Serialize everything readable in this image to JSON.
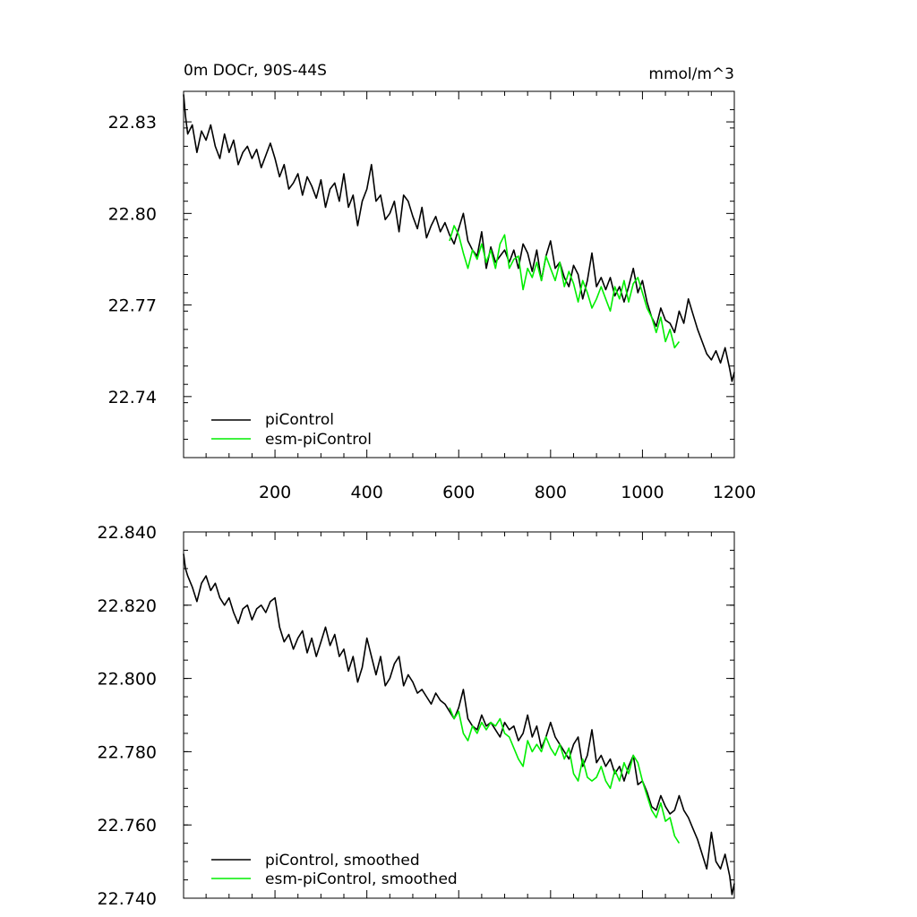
{
  "chart_data": [
    {
      "type": "line",
      "title": "0m DOCr, 90S-44S",
      "units": "mmol/m^3",
      "xlabel": "",
      "ylabel": "",
      "xlim": [
        1,
        1200
      ],
      "ylim": [
        22.72,
        22.84
      ],
      "xticks": [
        200,
        400,
        600,
        800,
        1000,
        1200
      ],
      "xtick_labels": [
        "200",
        "400",
        "600",
        "800",
        "1000",
        "1200"
      ],
      "yticks": [
        22.74,
        22.77,
        22.8,
        22.83
      ],
      "ytick_labels": [
        "22.74",
        "22.77",
        "22.80",
        "22.83"
      ],
      "legend_position": "bottom-left",
      "series": [
        {
          "name": "piControl",
          "color": "#000000",
          "x": [
            1,
            5,
            10,
            20,
            30,
            40,
            50,
            60,
            70,
            80,
            90,
            100,
            110,
            120,
            130,
            140,
            150,
            160,
            170,
            180,
            190,
            200,
            210,
            220,
            230,
            240,
            250,
            260,
            270,
            280,
            290,
            300,
            310,
            320,
            330,
            340,
            350,
            360,
            370,
            380,
            390,
            400,
            410,
            420,
            430,
            440,
            450,
            460,
            470,
            480,
            490,
            500,
            510,
            520,
            530,
            540,
            550,
            560,
            570,
            580,
            590,
            600,
            610,
            620,
            630,
            640,
            650,
            660,
            670,
            680,
            690,
            700,
            710,
            720,
            730,
            740,
            750,
            760,
            770,
            780,
            790,
            800,
            810,
            820,
            830,
            840,
            850,
            860,
            870,
            880,
            890,
            900,
            910,
            920,
            930,
            940,
            950,
            960,
            970,
            980,
            990,
            1000,
            1010,
            1020,
            1030,
            1040,
            1050,
            1060,
            1070,
            1080,
            1090,
            1100,
            1110,
            1120,
            1130,
            1140,
            1150,
            1160,
            1170,
            1180,
            1190,
            1195,
            1200
          ],
          "y": [
            22.839,
            22.832,
            22.826,
            22.829,
            22.82,
            22.827,
            22.824,
            22.829,
            22.822,
            22.818,
            22.826,
            22.82,
            22.824,
            22.816,
            22.82,
            22.822,
            22.818,
            22.821,
            22.815,
            22.819,
            22.823,
            22.818,
            22.812,
            22.816,
            22.808,
            22.81,
            22.813,
            22.806,
            22.812,
            22.809,
            22.805,
            22.811,
            22.802,
            22.808,
            22.81,
            22.804,
            22.813,
            22.802,
            22.806,
            22.796,
            22.804,
            22.808,
            22.816,
            22.804,
            22.806,
            22.798,
            22.8,
            22.804,
            22.794,
            22.806,
            22.804,
            22.799,
            22.795,
            22.802,
            22.792,
            22.796,
            22.799,
            22.794,
            22.797,
            22.793,
            22.79,
            22.795,
            22.8,
            22.791,
            22.788,
            22.786,
            22.794,
            22.782,
            22.789,
            22.784,
            22.786,
            22.788,
            22.784,
            22.788,
            22.782,
            22.79,
            22.787,
            22.781,
            22.788,
            22.778,
            22.786,
            22.791,
            22.782,
            22.784,
            22.779,
            22.776,
            22.783,
            22.78,
            22.772,
            22.778,
            22.787,
            22.776,
            22.779,
            22.775,
            22.779,
            22.773,
            22.776,
            22.771,
            22.776,
            22.782,
            22.774,
            22.778,
            22.771,
            22.766,
            22.763,
            22.769,
            22.765,
            22.764,
            22.761,
            22.768,
            22.764,
            22.772,
            22.767,
            22.762,
            22.758,
            22.754,
            22.752,
            22.755,
            22.751,
            22.756,
            22.749,
            22.745,
            22.748
          ]
        },
        {
          "name": "esm-piControl",
          "color": "#00ee00",
          "x": [
            580,
            590,
            600,
            610,
            620,
            630,
            640,
            650,
            660,
            670,
            680,
            690,
            700,
            710,
            720,
            730,
            740,
            750,
            760,
            770,
            780,
            790,
            800,
            810,
            820,
            830,
            840,
            850,
            860,
            870,
            880,
            890,
            900,
            910,
            920,
            930,
            940,
            950,
            960,
            970,
            980,
            990,
            1000,
            1010,
            1020,
            1030,
            1040,
            1050,
            1060,
            1070,
            1080
          ],
          "y": [
            22.791,
            22.796,
            22.793,
            22.787,
            22.782,
            22.788,
            22.785,
            22.79,
            22.784,
            22.788,
            22.782,
            22.79,
            22.793,
            22.782,
            22.785,
            22.786,
            22.775,
            22.782,
            22.779,
            22.784,
            22.778,
            22.786,
            22.782,
            22.778,
            22.784,
            22.776,
            22.781,
            22.777,
            22.771,
            22.778,
            22.774,
            22.769,
            22.772,
            22.776,
            22.772,
            22.768,
            22.776,
            22.772,
            22.778,
            22.771,
            22.777,
            22.779,
            22.774,
            22.769,
            22.766,
            22.761,
            22.766,
            22.758,
            22.762,
            22.756,
            22.758
          ]
        }
      ]
    },
    {
      "type": "line",
      "title": "",
      "xlabel": "",
      "ylabel": "",
      "xlim": [
        1,
        1200
      ],
      "ylim": [
        22.74,
        22.84
      ],
      "xticks": [
        200,
        400,
        600,
        800,
        1000,
        1200
      ],
      "yticks": [
        22.74,
        22.76,
        22.78,
        22.8,
        22.82,
        22.84
      ],
      "ytick_labels": [
        "22.740",
        "22.760",
        "22.780",
        "22.800",
        "22.820",
        "22.840"
      ],
      "legend_position": "bottom-left",
      "series": [
        {
          "name": "piControl, smoothed",
          "color": "#000000",
          "x": [
            1,
            5,
            10,
            20,
            30,
            40,
            50,
            60,
            70,
            80,
            90,
            100,
            110,
            120,
            130,
            140,
            150,
            160,
            170,
            180,
            190,
            200,
            210,
            220,
            230,
            240,
            250,
            260,
            270,
            280,
            290,
            300,
            310,
            320,
            330,
            340,
            350,
            360,
            370,
            380,
            390,
            400,
            410,
            420,
            430,
            440,
            450,
            460,
            470,
            480,
            490,
            500,
            510,
            520,
            530,
            540,
            550,
            560,
            570,
            580,
            590,
            600,
            610,
            620,
            630,
            640,
            650,
            660,
            670,
            680,
            690,
            700,
            710,
            720,
            730,
            740,
            750,
            760,
            770,
            780,
            790,
            800,
            810,
            820,
            830,
            840,
            850,
            860,
            870,
            880,
            890,
            900,
            910,
            920,
            930,
            940,
            950,
            960,
            970,
            980,
            990,
            1000,
            1010,
            1020,
            1030,
            1040,
            1050,
            1060,
            1070,
            1080,
            1090,
            1100,
            1110,
            1120,
            1130,
            1140,
            1150,
            1160,
            1170,
            1180,
            1190,
            1195,
            1200
          ],
          "y": [
            22.834,
            22.83,
            22.828,
            22.825,
            22.821,
            22.826,
            22.828,
            22.824,
            22.826,
            22.822,
            22.82,
            22.822,
            22.818,
            22.815,
            22.819,
            22.82,
            22.816,
            22.819,
            22.82,
            22.818,
            22.821,
            22.822,
            22.814,
            22.81,
            22.812,
            22.808,
            22.811,
            22.813,
            22.807,
            22.811,
            22.806,
            22.81,
            22.814,
            22.809,
            22.812,
            22.806,
            22.808,
            22.802,
            22.806,
            22.799,
            22.803,
            22.811,
            22.806,
            22.801,
            22.806,
            22.798,
            22.8,
            22.804,
            22.806,
            22.798,
            22.801,
            22.799,
            22.796,
            22.797,
            22.795,
            22.793,
            22.796,
            22.794,
            22.793,
            22.791,
            22.789,
            22.792,
            22.797,
            22.789,
            22.787,
            22.786,
            22.79,
            22.787,
            22.788,
            22.786,
            22.784,
            22.788,
            22.786,
            22.787,
            22.783,
            22.785,
            22.79,
            22.784,
            22.787,
            22.781,
            22.784,
            22.788,
            22.784,
            22.782,
            22.78,
            22.778,
            22.782,
            22.784,
            22.776,
            22.779,
            22.786,
            22.777,
            22.779,
            22.776,
            22.778,
            22.774,
            22.776,
            22.772,
            22.776,
            22.779,
            22.771,
            22.772,
            22.769,
            22.765,
            22.764,
            22.768,
            22.765,
            22.763,
            22.764,
            22.768,
            22.764,
            22.762,
            22.759,
            22.756,
            22.752,
            22.748,
            22.758,
            22.75,
            22.748,
            22.752,
            22.746,
            22.741,
            22.744
          ]
        },
        {
          "name": "esm-piControl, smoothed",
          "color": "#00ee00",
          "x": [
            580,
            590,
            600,
            610,
            620,
            630,
            640,
            650,
            660,
            670,
            680,
            690,
            700,
            710,
            720,
            730,
            740,
            750,
            760,
            770,
            780,
            790,
            800,
            810,
            820,
            830,
            840,
            850,
            860,
            870,
            880,
            890,
            900,
            910,
            920,
            930,
            940,
            950,
            960,
            970,
            980,
            990,
            1000,
            1010,
            1020,
            1030,
            1040,
            1050,
            1060,
            1070,
            1080
          ],
          "y": [
            22.792,
            22.789,
            22.791,
            22.785,
            22.783,
            22.787,
            22.785,
            22.788,
            22.786,
            22.788,
            22.787,
            22.789,
            22.785,
            22.784,
            22.781,
            22.778,
            22.776,
            22.783,
            22.78,
            22.782,
            22.78,
            22.784,
            22.781,
            22.779,
            22.782,
            22.778,
            22.781,
            22.774,
            22.772,
            22.778,
            22.773,
            22.772,
            22.773,
            22.776,
            22.772,
            22.77,
            22.775,
            22.772,
            22.777,
            22.774,
            22.779,
            22.777,
            22.772,
            22.768,
            22.764,
            22.762,
            22.766,
            22.761,
            22.762,
            22.757,
            22.755
          ]
        }
      ]
    }
  ]
}
